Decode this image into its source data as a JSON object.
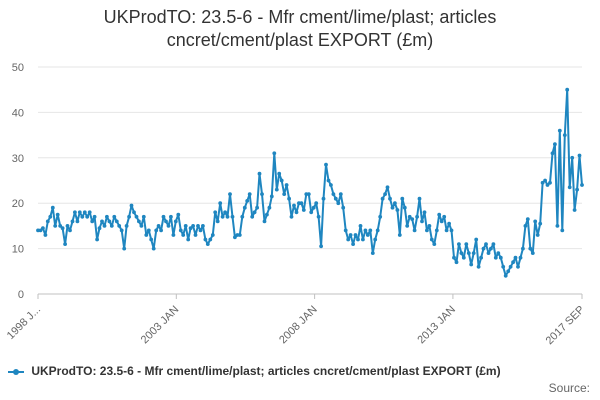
{
  "chart_data": {
    "type": "line",
    "title_line1": "UKProdTO: 23.5-6 - Mfr cment/lime/plast; articles",
    "title_line2": "cncret/cment/plast EXPORT (£m)",
    "xlabel": "",
    "ylabel": "",
    "ylim": [
      0,
      50
    ],
    "y_ticks": [
      0,
      10,
      20,
      30,
      40,
      50
    ],
    "x_ticks": [
      "1998 J...",
      "2003 JAN",
      "2008 JAN",
      "2013 JAN",
      "2017 SEP"
    ],
    "x_range": [
      "1998-01",
      "2017-09"
    ],
    "grid": true,
    "legend": "bottom",
    "series": [
      {
        "name": "UKProdTO: 23.5-6 - Mfr cment/lime/plast; articles cncret/cment/plast EXPORT (£m)",
        "color": "#1f86c0",
        "values": [
          14,
          14,
          14.5,
          13,
          16,
          17,
          19,
          15,
          17.5,
          15,
          14.5,
          11,
          15,
          14,
          16,
          18,
          16,
          18,
          17,
          18,
          17,
          18,
          16,
          17,
          12,
          14.5,
          16,
          15,
          17,
          16,
          15,
          17,
          16,
          15,
          14,
          10,
          15,
          17,
          19.5,
          18,
          17,
          16,
          15,
          17,
          13,
          14,
          12,
          10,
          14,
          15,
          14,
          17,
          16,
          15,
          17,
          13,
          16,
          17.5,
          14,
          13,
          15,
          12,
          14.5,
          15,
          13,
          15,
          14,
          15,
          12,
          11,
          12,
          13,
          18,
          16,
          20,
          17,
          18,
          17,
          22,
          17,
          12.5,
          13,
          13,
          17,
          19,
          20.5,
          22,
          17,
          18,
          19,
          26.5,
          22,
          16,
          17.5,
          19,
          21.5,
          31,
          23,
          26.5,
          25,
          22,
          24,
          21,
          17,
          19.5,
          18,
          20,
          20,
          18.5,
          22,
          22,
          18,
          19,
          20,
          17,
          10.5,
          21,
          28.5,
          25,
          24,
          22,
          21,
          20,
          22,
          19,
          14,
          12,
          13,
          11,
          13,
          12,
          15,
          12,
          14,
          13,
          14,
          9,
          12,
          14,
          17,
          21,
          22,
          23.5,
          21,
          19,
          20,
          18.5,
          13,
          21,
          19,
          15,
          17,
          16.5,
          14,
          17,
          21,
          16,
          18,
          14,
          15,
          12,
          11,
          14,
          17.5,
          16,
          17,
          14,
          15.5,
          14,
          8,
          7,
          11,
          9,
          8,
          11,
          9,
          6.5,
          9,
          12,
          6,
          8,
          10,
          11,
          9,
          10,
          11,
          8,
          9,
          8,
          6,
          4,
          5,
          6,
          7,
          8,
          6,
          8,
          10,
          15,
          16.5,
          10,
          9,
          16,
          13,
          15.5,
          24.5,
          25,
          24,
          24.5,
          31,
          33,
          15,
          36,
          14,
          35,
          45,
          23.5,
          30,
          18.5,
          23,
          30.5,
          24
        ]
      }
    ]
  },
  "source_label": "Source:"
}
